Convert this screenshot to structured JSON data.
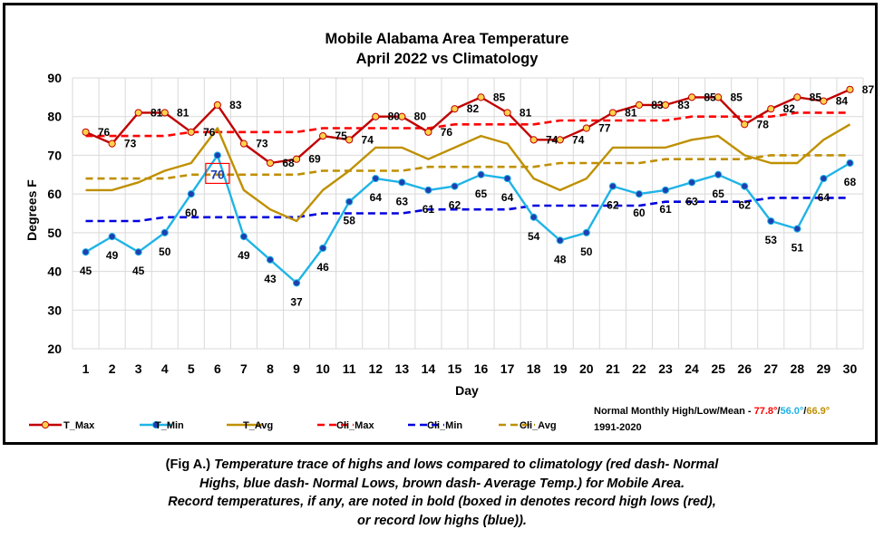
{
  "chart_data": {
    "type": "line",
    "title": "Mobile Alabama Area Temperature",
    "subtitle": "April 2022 vs Climatology",
    "xlabel": "Day",
    "ylabel": "Degrees F",
    "ylim": [
      20,
      90
    ],
    "y_ticks": [
      20,
      30,
      40,
      50,
      60,
      70,
      80,
      90
    ],
    "x": [
      1,
      2,
      3,
      4,
      5,
      6,
      7,
      8,
      9,
      10,
      11,
      12,
      13,
      14,
      15,
      16,
      17,
      18,
      19,
      20,
      21,
      22,
      23,
      24,
      25,
      26,
      27,
      28,
      29,
      30
    ],
    "grid": true,
    "legend_position": "bottom",
    "series": [
      {
        "name": "T_Max",
        "color": "#c00000",
        "marker": "circle",
        "marker_fill": "#ffd24d",
        "values": [
          76,
          73,
          81,
          81,
          76,
          83,
          73,
          68,
          69,
          75,
          74,
          80,
          80,
          76,
          82,
          85,
          81,
          74,
          74,
          77,
          81,
          83,
          83,
          85,
          85,
          78,
          82,
          85,
          84,
          87
        ]
      },
      {
        "name": "T_Min",
        "color": "#1fb4e6",
        "marker": "circle",
        "marker_fill": "#1f3fb0",
        "values": [
          45,
          49,
          45,
          50,
          60,
          70,
          49,
          43,
          37,
          46,
          58,
          64,
          63,
          61,
          62,
          65,
          64,
          54,
          48,
          50,
          62,
          60,
          61,
          63,
          65,
          62,
          53,
          51,
          64,
          68
        ]
      },
      {
        "name": "T_Avg",
        "color": "#bf9000",
        "values": [
          61,
          61,
          63,
          66,
          68,
          77,
          61,
          56,
          53,
          61,
          66,
          72,
          72,
          69,
          72,
          75,
          73,
          64,
          61,
          64,
          72,
          72,
          72,
          74,
          75,
          70,
          68,
          68,
          74,
          78
        ]
      },
      {
        "name": "Cli_Max",
        "color": "#ff0000",
        "dash": true,
        "values": [
          75,
          75,
          75,
          75,
          76,
          76,
          76,
          76,
          76,
          77,
          77,
          77,
          77,
          77,
          78,
          78,
          78,
          78,
          79,
          79,
          79,
          79,
          79,
          80,
          80,
          80,
          80,
          81,
          81,
          81
        ]
      },
      {
        "name": "Cli_Min",
        "color": "#0000e0",
        "dash": true,
        "values": [
          53,
          53,
          53,
          54,
          54,
          54,
          54,
          54,
          54,
          55,
          55,
          55,
          55,
          56,
          56,
          56,
          56,
          57,
          57,
          57,
          57,
          57,
          58,
          58,
          58,
          58,
          59,
          59,
          59,
          59
        ]
      },
      {
        "name": "Cli_Avg",
        "color": "#bf8f00",
        "dash": true,
        "values": [
          64,
          64,
          64,
          64,
          65,
          65,
          65,
          65,
          65,
          66,
          66,
          66,
          66,
          67,
          67,
          67,
          67,
          67,
          68,
          68,
          68,
          68,
          69,
          69,
          69,
          69,
          70,
          70,
          70,
          70
        ]
      }
    ],
    "annotations": {
      "normals_label": "Normal Monthly High/Low/Mean - ",
      "normal_high": "77.8°",
      "normal_low": "56.0°",
      "normal_mean": "66.9°",
      "separator": "/",
      "period": "1991-2020",
      "record_box_day": 6,
      "record_box_label": "70",
      "record_box_color": "#ff0000"
    }
  },
  "caption": {
    "fig_label": "(Fig A.) ",
    "line1_rest": "Temperature trace of highs and lows compared to climatology (red dash- Normal",
    "line2": "Highs, blue dash- Normal Lows, brown dash- Average Temp.) for Mobile Area.",
    "line3": "Record temperatures, if any, are noted in bold (boxed in denotes record high lows (red),",
    "line4": "or record low highs (blue))."
  }
}
